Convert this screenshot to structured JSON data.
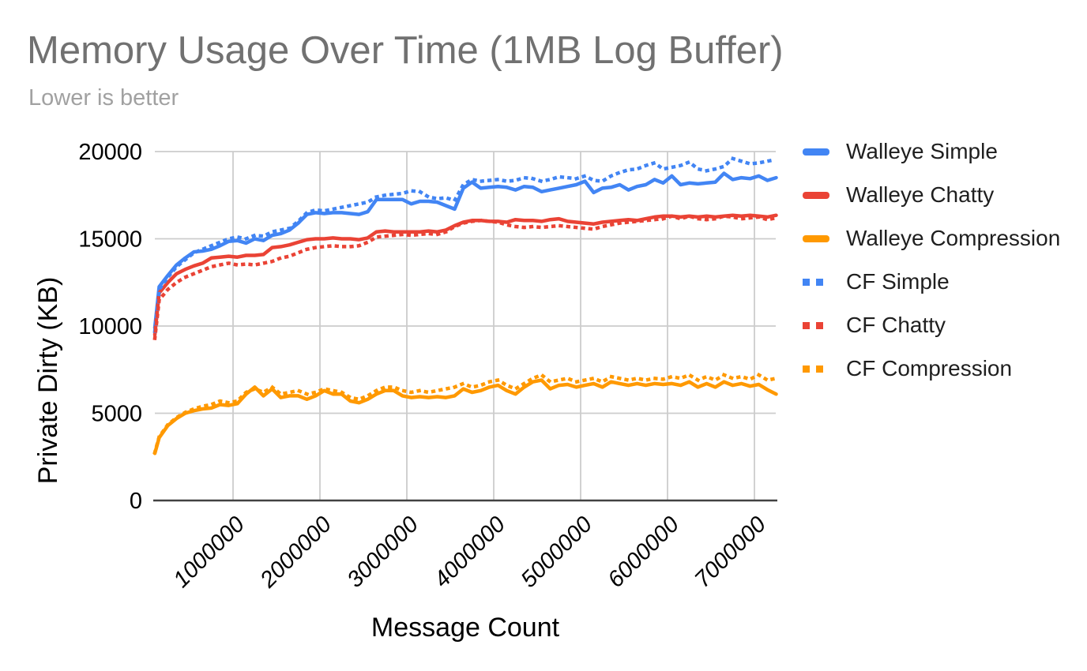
{
  "header": {
    "title": "Memory Usage Over Time (1MB Log Buffer)",
    "subtitle": "Lower is better"
  },
  "legend": {
    "items": [
      {
        "label": "Walleye Simple",
        "color": "#4285f4",
        "style": "solid"
      },
      {
        "label": "Walleye Chatty",
        "color": "#ea4335",
        "style": "solid"
      },
      {
        "label": "Walleye Compression",
        "color": "#ff9900",
        "style": "solid"
      },
      {
        "label": "CF Simple",
        "color": "#4285f4",
        "style": "dotted"
      },
      {
        "label": "CF Chatty",
        "color": "#ea4335",
        "style": "dotted"
      },
      {
        "label": "CF Compression",
        "color": "#ff9900",
        "style": "dotted"
      }
    ]
  },
  "chart_data": {
    "type": "line",
    "title": "Memory Usage Over Time (1MB Log Buffer)",
    "subtitle": "Lower is better",
    "xlabel": "Message Count",
    "ylabel": "Private Dirty (KB)",
    "xlim": [
      100000,
      7250000
    ],
    "ylim": [
      0,
      20000
    ],
    "y_ticks": [
      0,
      5000,
      10000,
      15000,
      20000
    ],
    "x_ticks": [
      1000000,
      2000000,
      3000000,
      4000000,
      5000000,
      6000000,
      7000000
    ],
    "grid": true,
    "legend_position": "right",
    "colors": {
      "blue": "#4285f4",
      "red": "#ea4335",
      "orange": "#ff9900",
      "gridline": "#cccccc",
      "axis": "#424242"
    },
    "x": [
      100000,
      150000,
      250000,
      350000,
      450000,
      550000,
      650000,
      750000,
      850000,
      950000,
      1050000,
      1150000,
      1250000,
      1350000,
      1450000,
      1550000,
      1650000,
      1750000,
      1850000,
      1950000,
      2050000,
      2150000,
      2250000,
      2350000,
      2450000,
      2550000,
      2650000,
      2750000,
      2850000,
      2950000,
      3050000,
      3150000,
      3250000,
      3350000,
      3450000,
      3550000,
      3650000,
      3750000,
      3850000,
      3950000,
      4050000,
      4150000,
      4250000,
      4350000,
      4450000,
      4550000,
      4650000,
      4750000,
      4850000,
      4950000,
      5050000,
      5150000,
      5250000,
      5350000,
      5450000,
      5550000,
      5650000,
      5750000,
      5850000,
      5950000,
      6050000,
      6150000,
      6250000,
      6350000,
      6450000,
      6550000,
      6650000,
      6750000,
      6850000,
      6950000,
      7050000,
      7150000,
      7250000
    ],
    "series": [
      {
        "name": "Walleye Simple",
        "color": "#4285f4",
        "style": "solid",
        "values": [
          9900,
          12250,
          12900,
          13500,
          13900,
          14250,
          14300,
          14400,
          14600,
          14850,
          14900,
          14750,
          15000,
          14900,
          15200,
          15300,
          15500,
          15900,
          16400,
          16500,
          16450,
          16500,
          16500,
          16450,
          16400,
          16550,
          17250,
          17250,
          17250,
          17250,
          17000,
          17150,
          17150,
          17100,
          16900,
          16700,
          17900,
          18250,
          17900,
          17950,
          18000,
          17950,
          17800,
          18000,
          17950,
          17700,
          17800,
          17900,
          18000,
          18100,
          18300,
          17650,
          17900,
          17950,
          18100,
          17800,
          18000,
          18100,
          18400,
          18200,
          18600,
          18100,
          18200,
          18150,
          18200,
          18250,
          18750,
          18400,
          18500,
          18450,
          18600,
          18350,
          18500
        ]
      },
      {
        "name": "Walleye Chatty",
        "color": "#ea4335",
        "style": "solid",
        "values": [
          9500,
          11900,
          12500,
          13000,
          13250,
          13450,
          13600,
          13900,
          13950,
          14000,
          13950,
          14050,
          14050,
          14100,
          14500,
          14550,
          14650,
          14800,
          14950,
          15000,
          15000,
          15050,
          15000,
          15000,
          14950,
          15050,
          15400,
          15450,
          15400,
          15400,
          15400,
          15400,
          15450,
          15400,
          15500,
          15750,
          15950,
          16050,
          16050,
          16000,
          16000,
          15950,
          16100,
          16050,
          16050,
          16000,
          16100,
          16150,
          16000,
          15950,
          15900,
          15850,
          15950,
          16000,
          16050,
          16100,
          16050,
          16150,
          16250,
          16300,
          16300,
          16250,
          16300,
          16250,
          16300,
          16250,
          16300,
          16350,
          16300,
          16350,
          16300,
          16250,
          16350
        ]
      },
      {
        "name": "Walleye Compression",
        "color": "#ff9900",
        "style": "solid",
        "values": [
          2700,
          3600,
          4300,
          4700,
          5000,
          5150,
          5250,
          5300,
          5500,
          5450,
          5550,
          6100,
          6500,
          6000,
          6400,
          5900,
          6000,
          6000,
          5800,
          6000,
          6300,
          6100,
          6100,
          5700,
          5600,
          5800,
          6100,
          6300,
          6300,
          6000,
          5900,
          5950,
          5900,
          5950,
          5900,
          6000,
          6400,
          6200,
          6300,
          6500,
          6600,
          6300,
          6100,
          6500,
          6800,
          6900,
          6400,
          6600,
          6650,
          6500,
          6600,
          6700,
          6500,
          6800,
          6700,
          6600,
          6700,
          6600,
          6700,
          6650,
          6700,
          6600,
          6800,
          6500,
          6700,
          6500,
          6800,
          6600,
          6700,
          6550,
          6650,
          6350,
          6100
        ]
      },
      {
        "name": "CF Simple",
        "color": "#4285f4",
        "style": "dotted",
        "values": [
          9700,
          12100,
          12800,
          13400,
          13800,
          14200,
          14400,
          14600,
          14800,
          15000,
          15100,
          15000,
          15200,
          15150,
          15400,
          15500,
          15600,
          16000,
          16500,
          16650,
          16600,
          16700,
          16800,
          16900,
          17000,
          17100,
          17400,
          17500,
          17550,
          17600,
          17750,
          17700,
          17400,
          17300,
          17350,
          17200,
          18100,
          18400,
          18300,
          18350,
          18400,
          18300,
          18350,
          18500,
          18450,
          18300,
          18400,
          18550,
          18500,
          18450,
          18600,
          18350,
          18300,
          18600,
          18800,
          18950,
          19000,
          19200,
          19350,
          19000,
          19100,
          19200,
          19400,
          19000,
          18900,
          19000,
          19150,
          19600,
          19450,
          19300,
          19350,
          19450,
          19550
        ]
      },
      {
        "name": "CF Chatty",
        "color": "#ea4335",
        "style": "dotted",
        "values": [
          9300,
          11500,
          12100,
          12500,
          12800,
          13000,
          13200,
          13400,
          13500,
          13600,
          13500,
          13550,
          13500,
          13600,
          13700,
          13900,
          14000,
          14200,
          14400,
          14500,
          14550,
          14600,
          14550,
          14550,
          14600,
          14800,
          15100,
          15150,
          15200,
          15250,
          15200,
          15250,
          15300,
          15250,
          15400,
          15700,
          15900,
          16000,
          16050,
          16000,
          15950,
          15800,
          15700,
          15650,
          15700,
          15650,
          15700,
          15750,
          15700,
          15650,
          15600,
          15550,
          15700,
          15800,
          15900,
          15950,
          16000,
          16050,
          16100,
          16150,
          16300,
          16150,
          16300,
          16150,
          16100,
          16150,
          16300,
          16250,
          16150,
          16200,
          16250,
          16100,
          16200
        ]
      },
      {
        "name": "CF Compression",
        "color": "#ff9900",
        "style": "dotted",
        "values": [
          2750,
          3650,
          4350,
          4750,
          5050,
          5250,
          5400,
          5500,
          5700,
          5600,
          5700,
          6200,
          6400,
          6200,
          6500,
          6100,
          6200,
          6300,
          6100,
          6200,
          6400,
          6300,
          6200,
          5900,
          5800,
          6000,
          6300,
          6500,
          6500,
          6300,
          6200,
          6300,
          6200,
          6300,
          6400,
          6500,
          6700,
          6500,
          6600,
          6800,
          6900,
          6600,
          6400,
          6700,
          7000,
          7200,
          6800,
          6900,
          7000,
          6800,
          6900,
          7000,
          6800,
          7100,
          7000,
          6900,
          7000,
          6900,
          7000,
          6950,
          7100,
          7000,
          7200,
          6900,
          7100,
          6900,
          7200,
          7000,
          7100,
          6950,
          7200,
          6900,
          7000
        ]
      }
    ]
  }
}
